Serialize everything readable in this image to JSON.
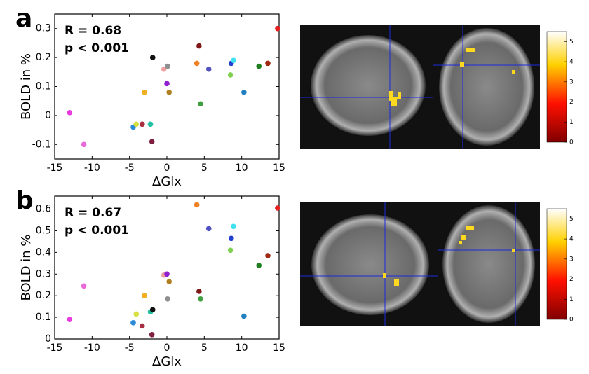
{
  "chart_data": [
    {
      "type": "scatter",
      "panel_label": "a",
      "annotations": [
        "R = 0.68",
        "p < 0.001"
      ],
      "xlabel": "ΔGlx",
      "ylabel": "BOLD in %",
      "xlim": [
        -15,
        15
      ],
      "xticks": [
        -15,
        -10,
        -5,
        0,
        5,
        10,
        15
      ],
      "ylim": [
        -0.15,
        0.35
      ],
      "yticks": [
        -0.1,
        0,
        0.1,
        0.2,
        0.3
      ],
      "x": [
        -13.0,
        -11.1,
        -4.5,
        -4.1,
        -3.3,
        -2.2,
        -2.0,
        -3.0,
        -1.9,
        -0.4,
        0.1,
        0,
        0.3,
        4.0,
        4.3,
        4.5,
        5.6,
        8.6,
        8.9,
        8.5,
        10.3,
        12.3,
        13.5,
        14.8
      ],
      "values": [
        0.01,
        -0.1,
        -0.04,
        -0.03,
        -0.03,
        -0.03,
        -0.09,
        0.08,
        0.2,
        0.16,
        0.17,
        0.11,
        0.08,
        0.18,
        0.24,
        0.04,
        0.16,
        0.18,
        0.19,
        0.14,
        0.08,
        0.17,
        0.18,
        0.3
      ],
      "colors": [
        "#e83ce0",
        "#e86ad8",
        "#2a8ad8",
        "#d8e040",
        "#a83040",
        "#20c0a0",
        "#802040",
        "#f0b020",
        "#101010",
        "#f0a0a0",
        "#909090",
        "#9020d0",
        "#b08020",
        "#f08020",
        "#801818",
        "#40a040",
        "#5050c0",
        "#2040d0",
        "#40e0f0",
        "#80d050",
        "#2080c0",
        "#208020",
        "#a02810",
        "#e82020"
      ],
      "colorbar": {
        "lim": [
          0,
          5.5
        ],
        "ticks": [
          0,
          1,
          2,
          3,
          4,
          5
        ]
      }
    },
    {
      "type": "scatter",
      "panel_label": "b",
      "annotations": [
        "R = 0.67",
        "p < 0.001"
      ],
      "xlabel": "ΔGlx",
      "ylabel": "BOLD in %",
      "xlim": [
        -15,
        15
      ],
      "xticks": [
        -15,
        -10,
        -5,
        0,
        5,
        10,
        15
      ],
      "ylim": [
        0,
        0.66
      ],
      "yticks": [
        0,
        0.1,
        0.2,
        0.3,
        0.4,
        0.5,
        0.6
      ],
      "x": [
        -13.0,
        -11.1,
        -4.5,
        -4.1,
        -3.3,
        -2.2,
        -2.0,
        -3.0,
        -1.9,
        -0.4,
        0.1,
        0,
        0.3,
        4.0,
        4.3,
        4.5,
        5.6,
        8.6,
        8.9,
        8.5,
        10.3,
        12.3,
        13.5,
        14.8
      ],
      "values": [
        0.09,
        0.245,
        0.075,
        0.115,
        0.06,
        0.125,
        0.02,
        0.2,
        0.135,
        0.295,
        0.185,
        0.3,
        0.265,
        0.62,
        0.22,
        0.185,
        0.51,
        0.465,
        0.52,
        0.41,
        0.105,
        0.34,
        0.385,
        0.605
      ],
      "colors": [
        "#e83ce0",
        "#e86ad8",
        "#2a8ad8",
        "#d8e040",
        "#a83040",
        "#20c0a0",
        "#802040",
        "#f0b020",
        "#101010",
        "#f0a0a0",
        "#909090",
        "#9020d0",
        "#b08020",
        "#f08020",
        "#801818",
        "#40a040",
        "#5050c0",
        "#2040d0",
        "#40e0f0",
        "#80d050",
        "#2080c0",
        "#208020",
        "#a02810",
        "#e82020"
      ],
      "colorbar": {
        "lim": [
          0,
          5.5
        ],
        "ticks": [
          0,
          1,
          2,
          3,
          4,
          5
        ]
      }
    }
  ]
}
